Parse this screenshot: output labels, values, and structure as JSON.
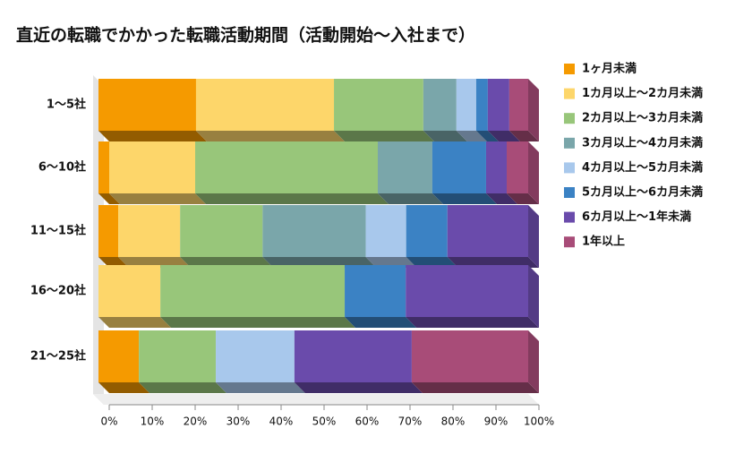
{
  "chart_data": {
    "type": "bar",
    "orientation": "horizontal",
    "stacked": true,
    "title": "直近の転職でかかった転職活動期間（活動開始～入社まで）",
    "categories": [
      "1～5社",
      "6～10社",
      "11～15社",
      "16～20社",
      "21～25社"
    ],
    "series": [
      {
        "name": "1ヶ月未満",
        "color": "#f59a00",
        "values": [
          22.7,
          2.5,
          4.6,
          0,
          9.4
        ]
      },
      {
        "name": "1カ月以上～2カ月未満",
        "color": "#fdd66a",
        "values": [
          32.1,
          20.0,
          14.4,
          14.4,
          0
        ]
      },
      {
        "name": "2カ月以上～3カ月未満",
        "color": "#98c67a",
        "values": [
          20.8,
          42.5,
          19.2,
          42.9,
          17.9
        ]
      },
      {
        "name": "3カ月以上～4カ月未満",
        "color": "#7aa6aa",
        "values": [
          7.7,
          12.7,
          24.0,
          0,
          0
        ]
      },
      {
        "name": "4カ月以上～5カ月未満",
        "color": "#a8c8ec",
        "values": [
          4.6,
          0,
          9.4,
          0,
          18.3
        ]
      },
      {
        "name": "5カ月以上～6カ月未満",
        "color": "#3b82c4",
        "values": [
          2.7,
          12.5,
          9.6,
          14.2,
          0
        ]
      },
      {
        "name": "6カ月以上～1年未満",
        "color": "#6a4bab",
        "values": [
          5.0,
          4.8,
          18.8,
          28.5,
          27.3
        ]
      },
      {
        "name": "1年以上",
        "color": "#a84c78",
        "values": [
          4.4,
          5.0,
          0,
          0,
          27.1
        ]
      }
    ],
    "xlim": [
      0,
      100
    ],
    "xticks": [
      {
        "value": 0,
        "label": "0%"
      },
      {
        "value": 10,
        "label": "10%"
      },
      {
        "value": 20,
        "label": "20%"
      },
      {
        "value": 30,
        "label": "30%"
      },
      {
        "value": 40,
        "label": "40%"
      },
      {
        "value": 50,
        "label": "50%"
      },
      {
        "value": 60,
        "label": "60%"
      },
      {
        "value": 70,
        "label": "70%"
      },
      {
        "value": 80,
        "label": "80%"
      },
      {
        "value": 90,
        "label": "90%"
      },
      {
        "value": 100,
        "label": "100%"
      }
    ],
    "legend": "right"
  }
}
